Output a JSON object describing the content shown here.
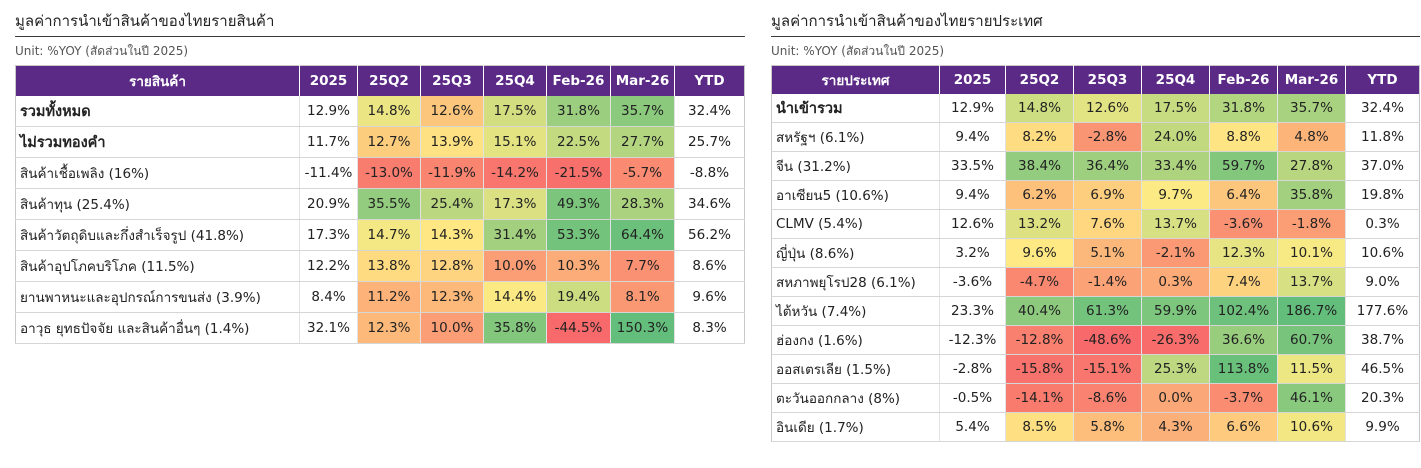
{
  "chart_data": [
    {
      "type": "table",
      "title": "มูลค่าการนำเข้าสินค้าของไทยรายสินค้า",
      "subtitle": "Unit: %YOY (สัดส่วนในปี 2025)",
      "columns": [
        "รายสินค้า",
        "2025",
        "25Q2",
        "25Q3",
        "25Q4",
        "Feb-26",
        "Mar-26",
        "YTD"
      ],
      "color_scaled_columns": [
        "25Q2",
        "25Q3",
        "25Q4",
        "Feb-26",
        "Mar-26"
      ],
      "color_scale": {
        "low": "#f8696b",
        "mid": "#ffeb84",
        "high": "#63be7b"
      },
      "rows": [
        {
          "label": "รวมทั้งหมด",
          "level": 0,
          "values": [
            12.9,
            14.8,
            12.6,
            17.5,
            31.8,
            35.7,
            32.4
          ]
        },
        {
          "label": "ไม่รวมทองคำ",
          "level": 0,
          "values": [
            11.7,
            12.7,
            13.9,
            15.1,
            22.5,
            27.7,
            25.7
          ]
        },
        {
          "label": "สินค้าเชื้อเพลิง (16%)",
          "level": 1,
          "values": [
            -11.4,
            -13.0,
            -11.9,
            -14.2,
            -21.5,
            -5.7,
            -8.8
          ]
        },
        {
          "label": "สินค้าทุน (25.4%)",
          "level": 1,
          "values": [
            20.9,
            35.5,
            25.4,
            17.3,
            49.3,
            28.3,
            34.6
          ]
        },
        {
          "label": "สินค้าวัตถุดิบและกึ่งสำเร็จรูป (41.8%)",
          "level": 1,
          "values": [
            17.3,
            14.7,
            14.3,
            31.4,
            53.3,
            64.4,
            56.2
          ]
        },
        {
          "label": "สินค้าอุปโภคบริโภค (11.5%)",
          "level": 1,
          "values": [
            12.2,
            13.8,
            12.8,
            10.0,
            10.3,
            7.7,
            8.6
          ]
        },
        {
          "label": "ยานพาหนะและอุปกรณ์การขนส่ง (3.9%)",
          "level": 1,
          "values": [
            8.4,
            11.2,
            12.3,
            14.4,
            19.4,
            8.1,
            9.6
          ]
        },
        {
          "label": "อาวุธ ยุทธปัจจัย และสินค้าอื่นๆ (1.4%)",
          "level": 1,
          "values": [
            32.1,
            12.3,
            10.0,
            35.8,
            -44.5,
            150.3,
            8.3
          ]
        }
      ]
    },
    {
      "type": "table",
      "title": "มูลค่าการนำเข้าสินค้าของไทยรายประเทศ",
      "subtitle": "Unit: %YOY (สัดส่วนในปี 2025)",
      "columns": [
        "รายประเทศ",
        "2025",
        "25Q2",
        "25Q3",
        "25Q4",
        "Feb-26",
        "Mar-26",
        "YTD"
      ],
      "color_scaled_columns": [
        "25Q2",
        "25Q3",
        "25Q4",
        "Feb-26",
        "Mar-26"
      ],
      "color_scale": {
        "low": "#f8696b",
        "mid": "#ffeb84",
        "high": "#63be7b"
      },
      "rows": [
        {
          "label": "นำเข้ารวม",
          "level": 0,
          "values": [
            12.9,
            14.8,
            12.6,
            17.5,
            31.8,
            35.7,
            32.4
          ]
        },
        {
          "label": "สหรัฐฯ (6.1%)",
          "level": 1,
          "values": [
            9.4,
            8.2,
            -2.8,
            24.0,
            8.8,
            4.8,
            11.8
          ]
        },
        {
          "label": "จีน (31.2%)",
          "level": 1,
          "values": [
            33.5,
            38.4,
            36.4,
            33.4,
            59.7,
            27.8,
            37.0
          ]
        },
        {
          "label": "อาเซียน5 (10.6%)",
          "level": 1,
          "values": [
            9.4,
            6.2,
            6.9,
            9.7,
            6.4,
            35.8,
            19.8
          ]
        },
        {
          "label": "CLMV (5.4%)",
          "level": 1,
          "values": [
            12.6,
            13.2,
            7.6,
            13.7,
            -3.6,
            -1.8,
            0.3
          ]
        },
        {
          "label": "ญี่ปุ่น (8.6%)",
          "level": 1,
          "values": [
            3.2,
            9.6,
            5.1,
            -2.1,
            12.3,
            10.1,
            10.6
          ]
        },
        {
          "label": "สหภาพยุโรป28 (6.1%)",
          "level": 1,
          "values": [
            -3.6,
            -4.7,
            -1.4,
            0.3,
            7.4,
            13.7,
            9.0
          ]
        },
        {
          "label": "ไต้หวัน (7.4%)",
          "level": 1,
          "values": [
            23.3,
            40.4,
            61.3,
            59.9,
            102.4,
            186.7,
            177.6
          ]
        },
        {
          "label": "ฮ่องกง (1.6%)",
          "level": 1,
          "values": [
            -12.3,
            -12.8,
            -48.6,
            -26.3,
            36.6,
            60.7,
            38.7
          ]
        },
        {
          "label": "ออสเตรเลีย (1.5%)",
          "level": 1,
          "values": [
            -2.8,
            -15.8,
            -15.1,
            25.3,
            113.8,
            11.5,
            46.5
          ]
        },
        {
          "label": "ตะวันออกกลาง (8%)",
          "level": 1,
          "values": [
            -0.5,
            -14.1,
            -8.6,
            0.0,
            -3.7,
            46.1,
            20.3
          ]
        },
        {
          "label": "อินเดีย (1.7%)",
          "level": 1,
          "values": [
            5.4,
            8.5,
            5.8,
            4.3,
            6.6,
            10.6,
            9.9
          ]
        }
      ]
    }
  ]
}
